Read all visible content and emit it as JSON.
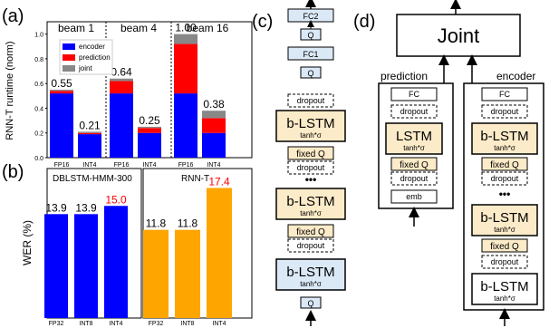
{
  "panel_labels": {
    "a": "(a)",
    "b": "(b)",
    "c": "(c)",
    "d": "(d)"
  },
  "colors": {
    "encoder": "#0000ff",
    "prediction": "#ff0000",
    "joint": "#888888",
    "rnnt_bar": "#ffa500",
    "lstm_fill": "#fcebc8",
    "q_fill": "#dbe9f7"
  },
  "chart_data": [
    {
      "type": "bar",
      "stacked": true,
      "ylabel": "RNN-T runtime (norm)",
      "ylim": [
        0,
        1.1
      ],
      "yticks": [
        "0.0",
        "0.2",
        "0.4",
        "0.6",
        "0.8",
        "1.0"
      ],
      "group_titles": [
        "beam 1",
        "beam 4",
        "beam 16"
      ],
      "categories": [
        "FP16",
        "INT4",
        "FP16",
        "INT4",
        "FP16",
        "INT4"
      ],
      "totals": [
        "0.55",
        "0.21",
        "0.64",
        "0.25",
        "1.00",
        "0.38"
      ],
      "series": [
        {
          "name": "encoder",
          "values": [
            0.52,
            0.19,
            0.52,
            0.2,
            0.52,
            0.2
          ]
        },
        {
          "name": "prediction",
          "values": [
            0.02,
            0.01,
            0.1,
            0.04,
            0.4,
            0.12
          ]
        },
        {
          "name": "joint",
          "values": [
            0.01,
            0.01,
            0.02,
            0.01,
            0.08,
            0.06
          ]
        }
      ]
    },
    {
      "type": "bar",
      "ylabel": "WER (%)",
      "ylim": [
        0,
        20
      ],
      "subplots": [
        {
          "title": "DBLSTM-HMM-300",
          "categories": [
            "FP32",
            "INT8",
            "INT4"
          ],
          "values": [
            13.9,
            13.9,
            15.0
          ],
          "labels": [
            "13.9",
            "13.9",
            "15.0"
          ]
        },
        {
          "title": "RNN-T",
          "categories": [
            "FP32",
            "INT8",
            "INT4"
          ],
          "values": [
            11.8,
            11.8,
            17.4
          ],
          "labels": [
            "11.8",
            "11.8",
            "17.4"
          ]
        }
      ]
    }
  ],
  "diagram_c": {
    "blocks": [
      "FC2",
      "Q",
      "FC1",
      "Q",
      "dropout",
      "b-LSTM",
      "tanh*σ",
      "fixed Q",
      "dropout",
      "•••",
      "b-LSTM",
      "tanh*σ",
      "fixed Q",
      "dropout",
      "b-LSTM",
      "tanh*σ",
      "Q"
    ]
  },
  "diagram_d": {
    "joint": "Joint",
    "prediction_title": "prediction",
    "encoder_title": "encoder",
    "prediction_blocks": [
      "FC",
      "dropout",
      "LSTM",
      "tanh*σ",
      "fixed Q",
      "dropout",
      "emb"
    ],
    "encoder_blocks": [
      "FC",
      "dropout",
      "b-LSTM",
      "tanh*σ",
      "fixed Q",
      "dropout",
      "•••",
      "b-LSTM",
      "tanh*σ",
      "fixed Q",
      "dropout",
      "b-LSTM",
      "tanh*σ"
    ]
  }
}
